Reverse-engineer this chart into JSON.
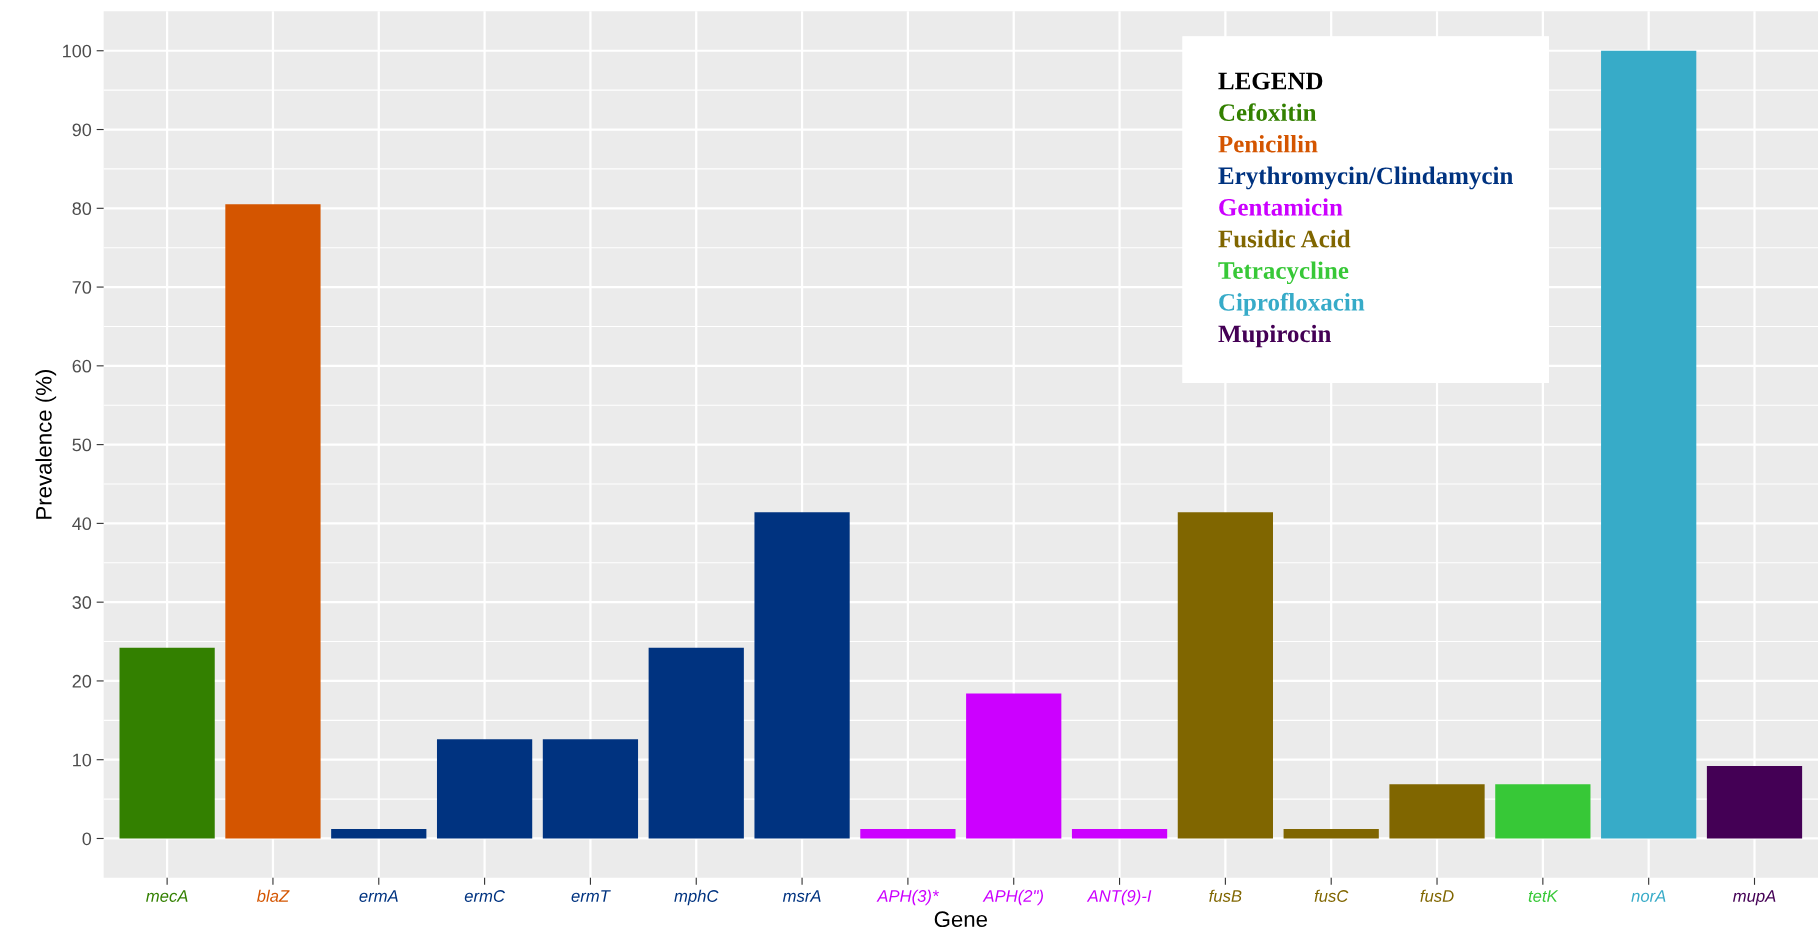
{
  "chart_data": {
    "type": "bar",
    "xlabel": "Gene",
    "ylabel": "Prevalence (%)",
    "legend_title": "LEGEND",
    "legend": "top right",
    "grid": true,
    "categories": [
      "mecA",
      "blaZ",
      "ermA",
      "ermC",
      "ermT",
      "mphC",
      "msrA",
      "APH(3)*",
      "APH(2\")",
      "ANT(9)-I",
      "fusB",
      "fusC",
      "fusD",
      "tetK",
      "norA",
      "mupA"
    ],
    "ylim": [
      -5,
      105
    ],
    "yticks": [
      0,
      10,
      20,
      30,
      40,
      50,
      60,
      70,
      80,
      90,
      100
    ],
    "series": [
      {
        "name": "Cefoxitin",
        "color": "#338000",
        "values": [
          24.2,
          null,
          null,
          null,
          null,
          null,
          null,
          null,
          null,
          null,
          null,
          null,
          null,
          null,
          null,
          null
        ]
      },
      {
        "name": "Penicillin",
        "color": "#d45500",
        "values": [
          null,
          80.5,
          null,
          null,
          null,
          null,
          null,
          null,
          null,
          null,
          null,
          null,
          null,
          null,
          null,
          null
        ]
      },
      {
        "name": "Erythromycin/Clindamycin",
        "color": "#003380",
        "values": [
          null,
          null,
          1.2,
          12.6,
          12.6,
          24.2,
          41.4,
          null,
          null,
          null,
          null,
          null,
          null,
          null,
          null,
          null
        ]
      },
      {
        "name": "Gentamicin",
        "color": "#cc00ff",
        "values": [
          null,
          null,
          null,
          null,
          null,
          null,
          null,
          1.2,
          18.4,
          1.2,
          null,
          null,
          null,
          null,
          null,
          null
        ]
      },
      {
        "name": "Fusidic Acid",
        "color": "#806600",
        "values": [
          null,
          null,
          null,
          null,
          null,
          null,
          null,
          null,
          null,
          null,
          41.4,
          1.2,
          6.9,
          null,
          null,
          null
        ]
      },
      {
        "name": "Tetracycline",
        "color": "#37c837",
        "values": [
          null,
          null,
          null,
          null,
          null,
          null,
          null,
          null,
          null,
          null,
          null,
          null,
          null,
          6.9,
          null,
          null
        ]
      },
      {
        "name": "Ciprofloxacin",
        "color": "#37abc8",
        "values": [
          null,
          null,
          null,
          null,
          null,
          null,
          null,
          null,
          null,
          null,
          null,
          null,
          null,
          null,
          100,
          null
        ]
      },
      {
        "name": "Mupirocin",
        "color": "#440055",
        "values": [
          null,
          null,
          null,
          null,
          null,
          null,
          null,
          null,
          null,
          null,
          null,
          null,
          null,
          null,
          null,
          9.2
        ]
      }
    ]
  }
}
